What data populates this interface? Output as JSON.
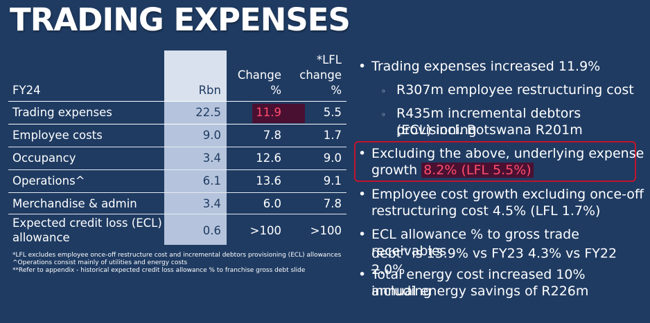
{
  "title": "TRADING EXPENSES",
  "table": {
    "header": {
      "label": "FY24",
      "rbn": "Rbn",
      "change_l1": "Change",
      "change_l2": "%",
      "lfl_l1": "*LFL",
      "lfl_l2": "change",
      "lfl_l3": "%"
    },
    "rows": [
      {
        "label": "Trading expenses",
        "rbn": "22.5",
        "change": "11.9",
        "lfl": "5.5"
      },
      {
        "label": "Employee costs",
        "rbn": "9.0",
        "change": "7.8",
        "lfl": "1.7"
      },
      {
        "label": "Occupancy",
        "rbn": "3.4",
        "change": "12.6",
        "lfl": "9.0"
      },
      {
        "label": "Operations^",
        "rbn": "6.1",
        "change": "13.6",
        "lfl": "9.1"
      },
      {
        "label": "Merchandise & admin",
        "rbn": "3.4",
        "change": "6.0",
        "lfl": "7.8"
      },
      {
        "label_l1": "Expected credit loss (ECL)",
        "label_l2": "allowance",
        "rbn": "0.6",
        "change": ">100",
        "lfl": ">100"
      }
    ]
  },
  "footnotes": [
    "*LFL excludes employee once-off restructure cost and incremental debtors provisioning (ECL) allowances",
    "^Operations consist mainly of utilities and energy costs",
    "**Refer to appendix - historical expected credit loss allowance % to franchise gross debt slide"
  ],
  "bullets": {
    "b1": "Trading expenses increased 11.9%",
    "s1": "R307m employee restructuring cost",
    "s2_l1": "R435m incremental debtors provisioning",
    "s2_l2": "(ECL) incl. Botswana R201m",
    "b2_l1": "Excluding the above, underlying expense",
    "b2_l2_pre": "growth ",
    "b2_l2_hl": "8.2% (LFL 5.5%)",
    "b3_l1": "Employee cost growth excluding once-off",
    "b3_l2": "restructuring cost 4.5% (LFL 1.7%)",
    "b4_l1": "ECL allowance % to gross trade receivables",
    "b4_l2_pre": "debt",
    "b4_l2_sup": "**",
    "b4_l2_post": " is 13.9% vs FY23 4.3% vs FY22 2.0%",
    "b5_l1": "Total energy cost increased 10% including",
    "b5_l2": "annual energy savings of R226m"
  },
  "colors": {
    "background": "#1f3b62",
    "rbn_column": "#b5c4dc",
    "highlight_bg": "#4a1032",
    "highlight_text": "#ff4d6d",
    "box_border": "#c4132d"
  }
}
